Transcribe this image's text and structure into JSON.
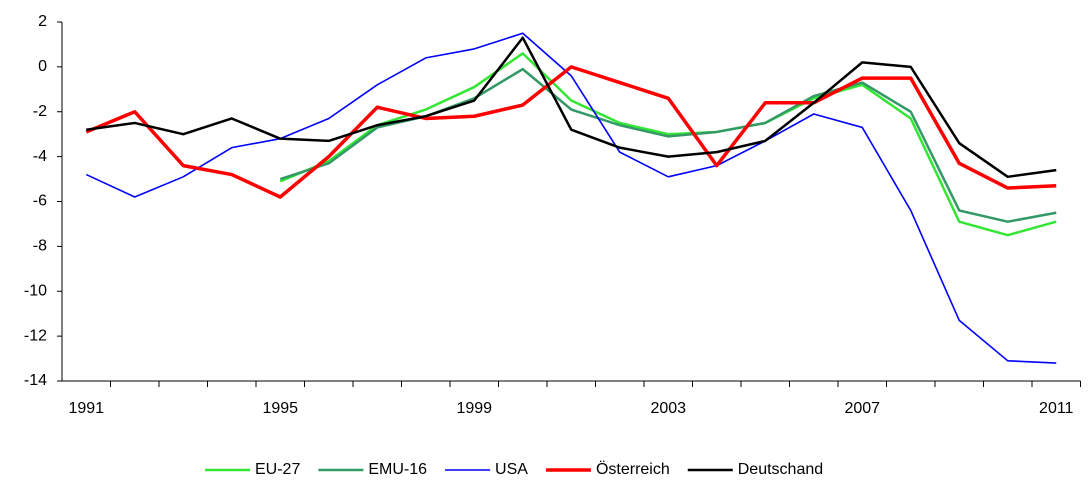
{
  "chart_data": {
    "type": "line",
    "categories": [
      "1991",
      null,
      null,
      null,
      "1995",
      null,
      null,
      null,
      "1999",
      null,
      null,
      null,
      "2003",
      null,
      null,
      null,
      "2007",
      null,
      null,
      null,
      "2011"
    ],
    "ylim": [
      -14,
      2
    ],
    "yticks": [
      -14,
      -12,
      -10,
      -8,
      -6,
      -4,
      -2,
      0,
      2
    ],
    "grid": false,
    "legend": "bottom",
    "series": [
      {
        "name": "EU-27",
        "color": "#33e633",
        "values": [
          null,
          null,
          null,
          null,
          -5.1,
          -4.2,
          -2.6,
          -1.9,
          -0.9,
          0.6,
          -1.5,
          -2.5,
          -3.0,
          -2.9,
          -2.5,
          -1.4,
          -0.8,
          -2.3,
          -6.9,
          -7.5,
          -6.9
        ]
      },
      {
        "name": "EMU-16",
        "color": "#339966",
        "values": [
          null,
          null,
          null,
          null,
          -5.0,
          -4.3,
          -2.7,
          -2.2,
          -1.4,
          -0.1,
          -1.9,
          -2.6,
          -3.1,
          -2.9,
          -2.5,
          -1.3,
          -0.7,
          -2.0,
          -6.4,
          -6.9,
          -6.5
        ]
      },
      {
        "name": "USA",
        "color": "#0000ff",
        "values": [
          -4.8,
          -5.8,
          -4.9,
          -3.6,
          -3.2,
          -2.3,
          -0.8,
          0.4,
          0.8,
          1.5,
          -0.4,
          -3.8,
          -4.9,
          -4.4,
          -3.3,
          -2.1,
          -2.7,
          -6.4,
          -11.3,
          -13.1,
          -13.2
        ]
      },
      {
        "name": "Österreich",
        "color": "#ff0000",
        "values": [
          -2.9,
          -2.0,
          -4.4,
          -4.8,
          -5.8,
          -4.0,
          -1.8,
          -2.3,
          -2.2,
          -1.7,
          0.0,
          -0.7,
          -1.4,
          -4.4,
          -1.6,
          -1.6,
          -0.5,
          -0.5,
          -4.3,
          -5.4,
          -5.3
        ]
      },
      {
        "name": "Deutschand",
        "color": "#000000",
        "values": [
          -2.8,
          -2.5,
          -3.0,
          -2.3,
          -3.2,
          -3.3,
          -2.6,
          -2.2,
          -1.5,
          1.3,
          -2.8,
          -3.6,
          -4.0,
          -3.8,
          -3.3,
          -1.6,
          0.2,
          0.0,
          -3.4,
          -4.9,
          -4.6
        ]
      }
    ]
  }
}
